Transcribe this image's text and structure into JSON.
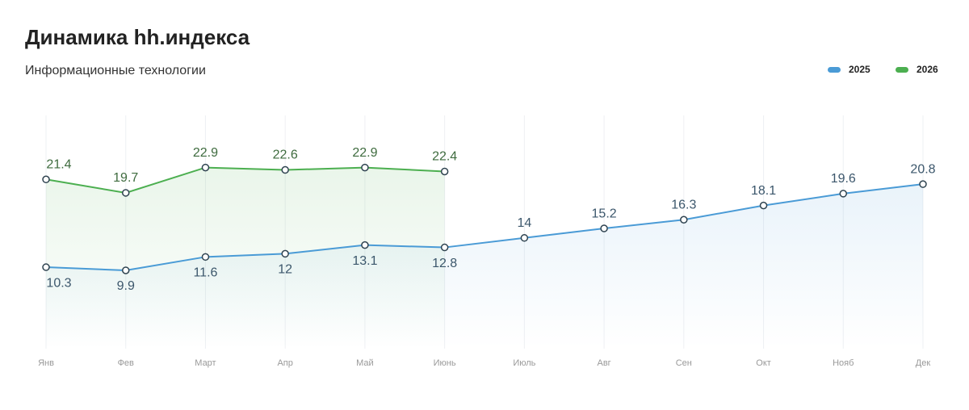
{
  "chart_data": {
    "type": "line",
    "title": "Динамика hh.индекса",
    "subtitle": "Информационные технологии",
    "categories": [
      "Янв",
      "Фев",
      "Март",
      "Апр",
      "Май",
      "Июнь",
      "Июль",
      "Авг",
      "Сен",
      "Окт",
      "Нояб",
      "Дек"
    ],
    "series": [
      {
        "name": "2025",
        "color": "#4a9bd6",
        "values": [
          10.3,
          9.9,
          11.6,
          12,
          13.1,
          12.8,
          14,
          15.2,
          16.3,
          18.1,
          19.6,
          20.8
        ]
      },
      {
        "name": "2026",
        "color": "#4caf50",
        "values": [
          21.4,
          19.7,
          22.9,
          22.6,
          22.9,
          22.4,
          null,
          null,
          null,
          null,
          null,
          null
        ]
      }
    ],
    "ylim": [
      0,
      30
    ],
    "legend": "top-right"
  }
}
